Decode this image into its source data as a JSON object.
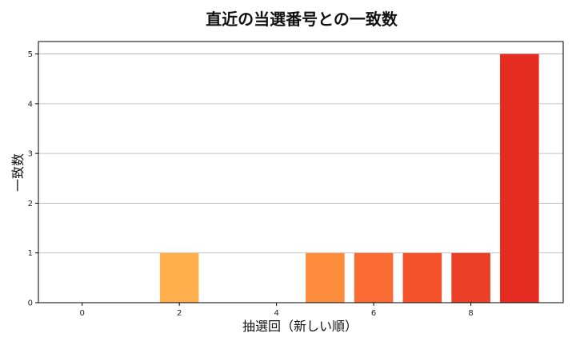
{
  "chart_data": {
    "type": "bar",
    "title": "直近の当選番号との一致数",
    "xlabel": "抽選回（新しい順）",
    "ylabel": "一致数",
    "x": [
      0,
      1,
      2,
      3,
      4,
      5,
      6,
      7,
      8,
      9
    ],
    "values": [
      0,
      0,
      1,
      0,
      0,
      1,
      1,
      1,
      1,
      5
    ],
    "colors": [
      "#fee8a5",
      "#fed380",
      "#feae4a",
      "#fd9c42",
      "#fd8a3b",
      "#fd8d3c",
      "#fa6b34",
      "#f5522c",
      "#ec3f27",
      "#e42d20"
    ],
    "xlim": [
      -0.9,
      9.9
    ],
    "ylim": [
      0,
      5.25
    ],
    "xticks": [
      0,
      2,
      4,
      6,
      8
    ],
    "yticks": [
      0,
      1,
      2,
      3,
      4,
      5
    ],
    "grid": "y",
    "legend": "none"
  }
}
